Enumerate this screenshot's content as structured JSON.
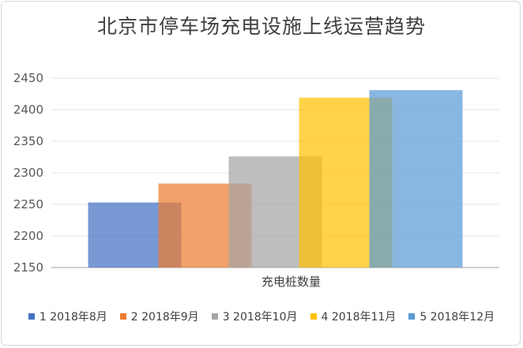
{
  "chart_data": {
    "type": "bar",
    "title": "北京市停车场充电设施上线运营趋势",
    "xlabel": "",
    "ylabel": "",
    "categories": [
      "充电桩数量"
    ],
    "series": [
      {
        "name": "1 2018年8月",
        "values": [
          2253
        ],
        "color": "#4472c4"
      },
      {
        "name": "2 2018年9月",
        "values": [
          2283
        ],
        "color": "#ed7d31"
      },
      {
        "name": "3 2018年10月",
        "values": [
          2326
        ],
        "color": "#a5a5a5"
      },
      {
        "name": "4 2018年11月",
        "values": [
          2419
        ],
        "color": "#ffc000"
      },
      {
        "name": "5 2018年12月",
        "values": [
          2431
        ],
        "color": "#5b9bd5"
      }
    ],
    "ylim": [
      2150,
      2450
    ],
    "yticks": [
      2150,
      2200,
      2250,
      2300,
      2350,
      2400,
      2450
    ],
    "grid": true,
    "legend_position": "bottom"
  }
}
